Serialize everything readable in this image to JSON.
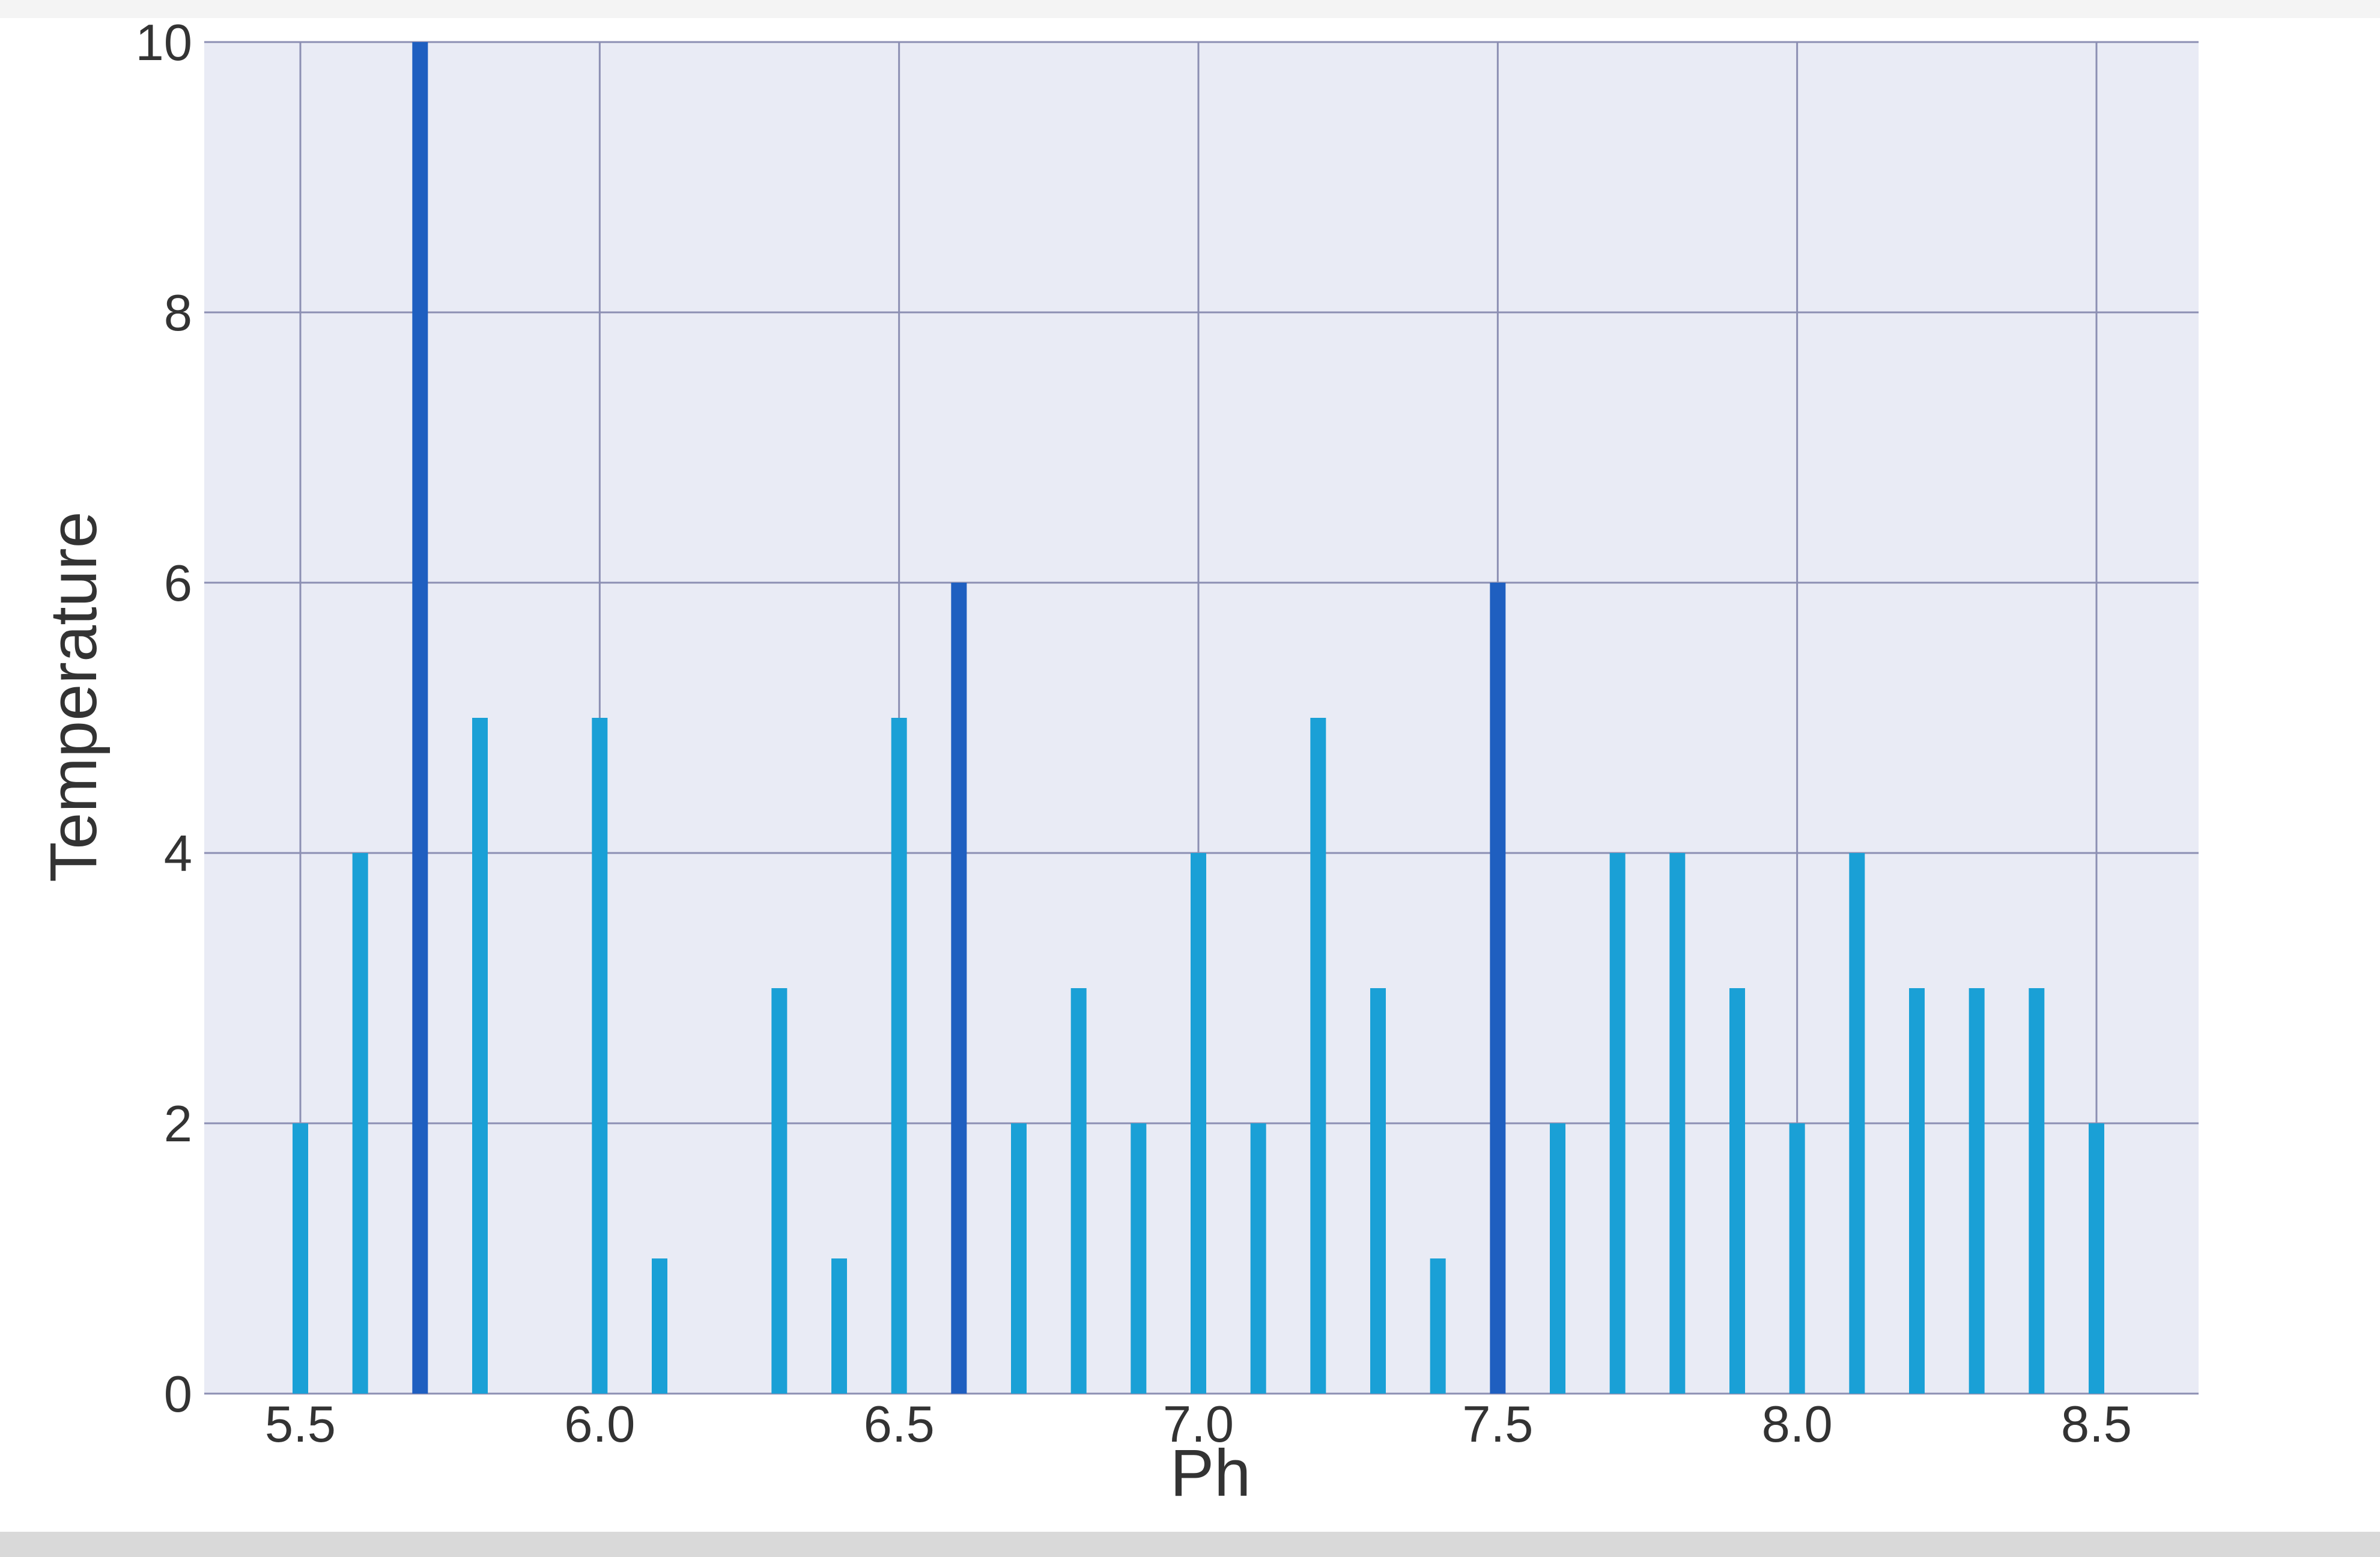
{
  "colors": {
    "bar": "#1aa0d6",
    "bar_tall": "#1f5fc0",
    "grid": "#8c8fb3",
    "plot_bg": "#e9ebf5",
    "axis_text": "#333333"
  },
  "chart_data": {
    "type": "bar",
    "xlabel": "Ph",
    "ylabel": "Temperature",
    "xlim": [
      5.5,
      8.5
    ],
    "ylim": [
      0,
      10
    ],
    "x_ticks": [
      "5.5",
      "6.0",
      "6.5",
      "7.0",
      "7.5",
      "8.0",
      "8.5"
    ],
    "y_ticks": [
      "0",
      "2",
      "4",
      "6",
      "8",
      "10"
    ],
    "grid": true,
    "x": [
      5.5,
      5.6,
      5.7,
      5.8,
      6.0,
      6.1,
      6.3,
      6.4,
      6.5,
      6.6,
      6.7,
      6.8,
      6.9,
      7.0,
      7.1,
      7.2,
      7.3,
      7.4,
      7.5,
      7.6,
      7.7,
      7.8,
      7.9,
      8.0,
      8.1,
      8.2,
      8.3,
      8.4,
      8.5
    ],
    "values": [
      2,
      4,
      10,
      5,
      5,
      1,
      3,
      1,
      5,
      6,
      2,
      3,
      2,
      4,
      2,
      5,
      3,
      1,
      6,
      2,
      4,
      4,
      3,
      2,
      4,
      3,
      3,
      3,
      2
    ]
  }
}
